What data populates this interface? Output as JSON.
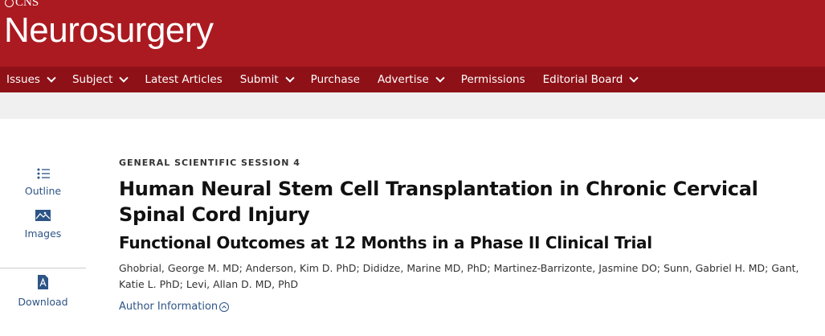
{
  "header": {
    "org": "CNS",
    "logo": "Neurosurgery"
  },
  "nav": [
    {
      "label": "Issues",
      "dropdown": true
    },
    {
      "label": "Subject",
      "dropdown": true
    },
    {
      "label": "Latest Articles",
      "dropdown": false
    },
    {
      "label": "Submit",
      "dropdown": true
    },
    {
      "label": "Purchase",
      "dropdown": false
    },
    {
      "label": "Advertise",
      "dropdown": true
    },
    {
      "label": "Permissions",
      "dropdown": false
    },
    {
      "label": "Editorial Board",
      "dropdown": true
    }
  ],
  "sidebar": {
    "outline": "Outline",
    "images": "Images",
    "download": "Download"
  },
  "article": {
    "kicker": "GENERAL SCIENTIFIC SESSION 4",
    "title": "Human Neural Stem Cell Transplantation in Chronic Cervical Spinal Cord Injury",
    "subtitle": "Functional Outcomes at 12 Months in a Phase II Clinical Trial",
    "authors": "Ghobrial, George M. MD; Anderson, Kim D. PhD; Dididze, Marine MD, PhD; Martinez-Barrizonte, Jasmine DO; Sunn, Gabriel H. MD; Gant, Katie L. PhD; Levi, Allan D. MD, PhD",
    "author_info": "Author Information"
  },
  "colors": {
    "brand": "#ab1a21",
    "nav": "#8e1117",
    "link": "#2d5486"
  }
}
